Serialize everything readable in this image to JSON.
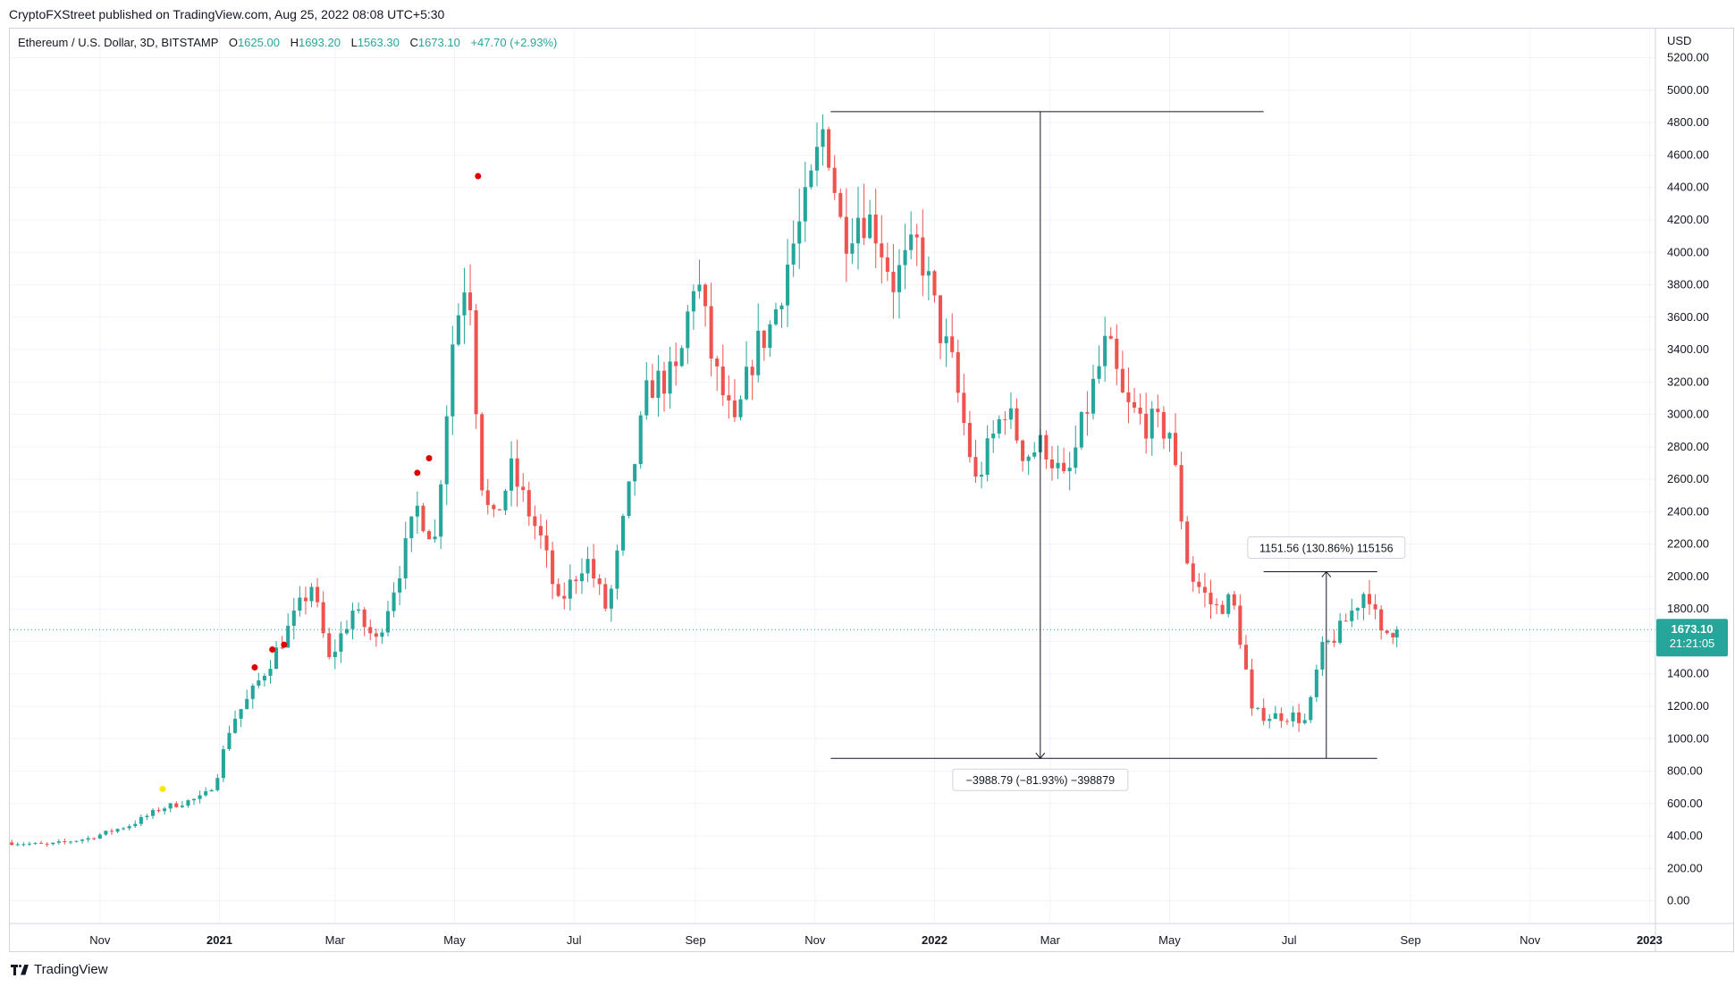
{
  "publisher_line": "CryptoFXStreet published on TradingView.com, Aug 25, 2022 08:08 UTC+5:30",
  "footer_brand": "TradingView",
  "header": {
    "symbol": "Ethereum / U.S. Dollar, 3D, BITSTAMP",
    "open_label": "O",
    "open": "1625.00",
    "high_label": "H",
    "high": "1693.20",
    "low_label": "L",
    "low": "1563.30",
    "close_label": "C",
    "close": "1673.10",
    "change": "+47.70 (+2.93%)"
  },
  "currency": "USD",
  "price_tag": {
    "price": "1673.10",
    "countdown": "21:21:05"
  },
  "measure_down_label": "−3988.79 (−81.93%) −398879",
  "measure_up_label": "1151.56 (130.86%) 115156",
  "colors": {
    "up": "#26a69a",
    "down": "#ef5350",
    "price_line": "#26a69a",
    "grid": "#f0f3fa",
    "marker_red": "#e00000",
    "marker_yellow": "#ffe600"
  },
  "chart_data": {
    "type": "candlestick",
    "title": "Ethereum / U.S. Dollar, 3D, BITSTAMP",
    "ylabel": "USD",
    "ylim": [
      -140,
      5380
    ],
    "x_range": [
      "2020-09-16",
      "2023-01-04"
    ],
    "yticks": [
      "0.00",
      "200.00",
      "400.00",
      "600.00",
      "800.00",
      "1000.00",
      "1200.00",
      "1400.00",
      "1600.00",
      "1800.00",
      "2000.00",
      "2200.00",
      "2400.00",
      "2600.00",
      "2800.00",
      "3000.00",
      "3200.00",
      "3400.00",
      "3600.00",
      "3800.00",
      "4000.00",
      "4200.00",
      "4400.00",
      "4600.00",
      "4800.00",
      "5000.00",
      "5200.00"
    ],
    "xticks": [
      {
        "date": "2020-11-01",
        "label": "Nov",
        "bold": false
      },
      {
        "date": "2021-01-01",
        "label": "2021",
        "bold": true
      },
      {
        "date": "2021-03-01",
        "label": "Mar",
        "bold": false
      },
      {
        "date": "2021-05-01",
        "label": "May",
        "bold": false
      },
      {
        "date": "2021-07-01",
        "label": "Jul",
        "bold": false
      },
      {
        "date": "2021-09-01",
        "label": "Sep",
        "bold": false
      },
      {
        "date": "2021-11-01",
        "label": "Nov",
        "bold": false
      },
      {
        "date": "2022-01-01",
        "label": "2022",
        "bold": true
      },
      {
        "date": "2022-03-01",
        "label": "Mar",
        "bold": false
      },
      {
        "date": "2022-05-01",
        "label": "May",
        "bold": false
      },
      {
        "date": "2022-07-01",
        "label": "Jul",
        "bold": false
      },
      {
        "date": "2022-09-01",
        "label": "Sep",
        "bold": false
      },
      {
        "date": "2022-11-01",
        "label": "Nov",
        "bold": false
      },
      {
        "date": "2023-01-01",
        "label": "2023",
        "bold": true
      }
    ],
    "anchors": [
      [
        "2020-09-17",
        360
      ],
      [
        "2020-10-08",
        345
      ],
      [
        "2020-10-29",
        385
      ],
      [
        "2020-11-20",
        470
      ],
      [
        "2020-12-05",
        570
      ],
      [
        "2020-12-27",
        640
      ],
      [
        "2021-01-02",
        740
      ],
      [
        "2021-01-10",
        1100
      ],
      [
        "2021-01-19",
        1250
      ],
      [
        "2021-02-03",
        1560
      ],
      [
        "2021-02-20",
        1950
      ],
      [
        "2021-03-01",
        1480
      ],
      [
        "2021-03-13",
        1790
      ],
      [
        "2021-03-25",
        1600
      ],
      [
        "2021-04-06",
        2050
      ],
      [
        "2021-04-15",
        2420
      ],
      [
        "2021-04-24",
        2230
      ],
      [
        "2021-05-03",
        3450
      ],
      [
        "2021-05-11",
        3950
      ],
      [
        "2021-05-17",
        2650
      ],
      [
        "2021-05-23",
        2300
      ],
      [
        "2021-06-02",
        2650
      ],
      [
        "2021-06-18",
        2200
      ],
      [
        "2021-06-26",
        1820
      ],
      [
        "2021-07-10",
        2120
      ],
      [
        "2021-07-21",
        1780
      ],
      [
        "2021-08-02",
        2580
      ],
      [
        "2021-08-11",
        3180
      ],
      [
        "2021-08-26",
        3240
      ],
      [
        "2021-09-04",
        3900
      ],
      [
        "2021-09-13",
        3300
      ],
      [
        "2021-09-24",
        2900
      ],
      [
        "2021-10-04",
        3390
      ],
      [
        "2021-10-13",
        3560
      ],
      [
        "2021-10-22",
        3980
      ],
      [
        "2021-10-31",
        4300
      ],
      [
        "2021-11-09",
        4800
      ],
      [
        "2021-11-18",
        4100
      ],
      [
        "2021-11-27",
        4260
      ],
      [
        "2021-12-05",
        4150
      ],
      [
        "2021-12-14",
        3820
      ],
      [
        "2021-12-27",
        4050
      ],
      [
        "2022-01-06",
        3550
      ],
      [
        "2022-01-13",
        3300
      ],
      [
        "2022-01-25",
        2580
      ],
      [
        "2022-02-09",
        3050
      ],
      [
        "2022-02-19",
        2750
      ],
      [
        "2022-03-01",
        2820
      ],
      [
        "2022-03-12",
        2560
      ],
      [
        "2022-03-24",
        3090
      ],
      [
        "2022-04-02",
        3450
      ],
      [
        "2022-04-11",
        3050
      ],
      [
        "2022-04-22",
        2950
      ],
      [
        "2022-05-04",
        2900
      ],
      [
        "2022-05-14",
        2020
      ],
      [
        "2022-05-27",
        1800
      ],
      [
        "2022-06-05",
        1860
      ],
      [
        "2022-06-11",
        1500
      ],
      [
        "2022-06-15",
        1160
      ],
      [
        "2022-06-24",
        1140
      ],
      [
        "2022-07-06",
        1140
      ],
      [
        "2022-07-13",
        1100
      ],
      [
        "2022-07-20",
        1530
      ],
      [
        "2022-07-30",
        1670
      ],
      [
        "2022-08-12",
        1920
      ],
      [
        "2022-08-15",
        1880
      ],
      [
        "2022-08-19",
        1620
      ],
      [
        "2022-08-25",
        1673
      ]
    ],
    "last_candle": {
      "open": 1625.0,
      "high": 1693.2,
      "low": 1563.3,
      "close": 1673.1
    },
    "last_price": 1673.1,
    "markers": [
      {
        "date": "2020-12-03",
        "value": 690,
        "color": "yellow"
      },
      {
        "date": "2021-01-19",
        "value": 1440,
        "color": "red"
      },
      {
        "date": "2021-01-28",
        "value": 1550,
        "color": "red"
      },
      {
        "date": "2021-02-03",
        "value": 1580,
        "color": "red"
      },
      {
        "date": "2021-04-12",
        "value": 2640,
        "color": "red"
      },
      {
        "date": "2021-04-18",
        "value": 2730,
        "color": "red"
      },
      {
        "date": "2021-05-13",
        "value": 4470,
        "color": "red"
      }
    ],
    "measurements": [
      {
        "from_date": "2021-11-09",
        "to_date": "2022-06-18",
        "x_date": "2022-02-24",
        "high": 4868,
        "low": 879,
        "direction": "down",
        "label": "−3988.79 (−81.93%) −398879"
      },
      {
        "from_date": "2022-06-18",
        "to_date": "2022-08-15",
        "x_date": "2022-07-20",
        "high": 2030,
        "low": 879,
        "direction": "up",
        "label": "1151.56 (130.86%) 115156"
      }
    ]
  }
}
